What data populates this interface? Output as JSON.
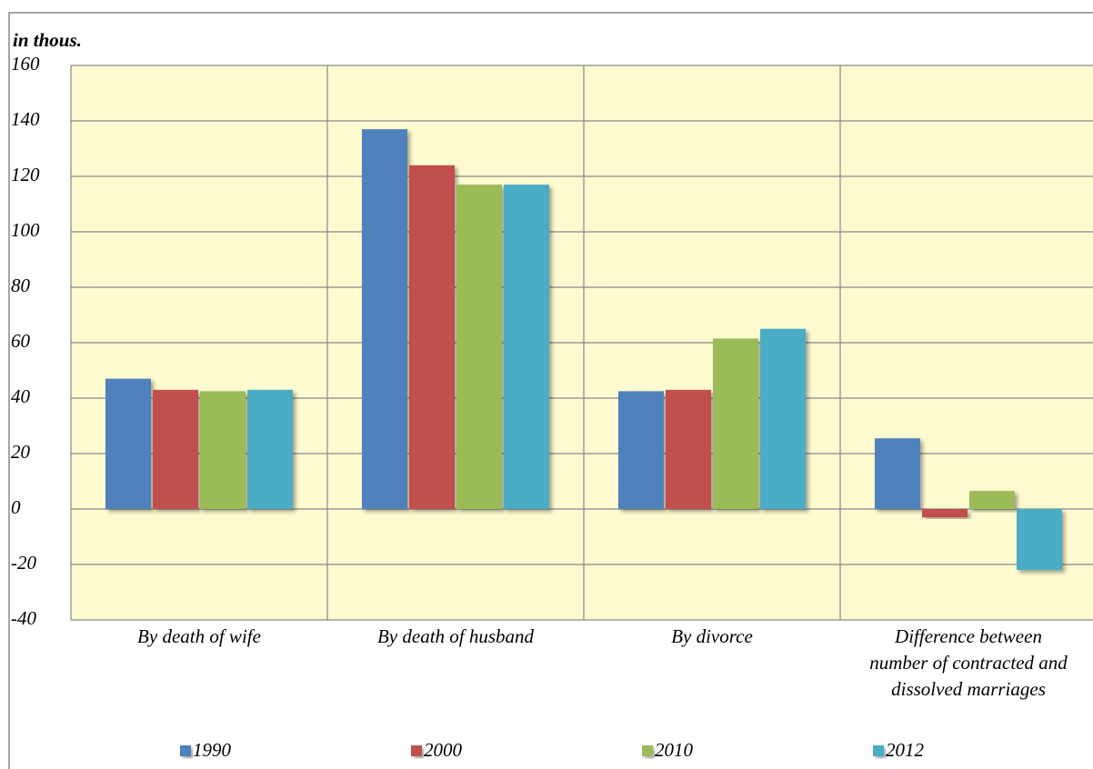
{
  "chart_data": {
    "type": "bar",
    "title": "in thous.",
    "categories": [
      "By death of wife",
      "By death of husband",
      "By divorce",
      "Difference between number of contracted and dissolved marriages"
    ],
    "series": [
      {
        "name": "1990",
        "color": "#4f81bd",
        "values": [
          47,
          137,
          42.5,
          25.5
        ]
      },
      {
        "name": "2000",
        "color": "#c0504d",
        "values": [
          43,
          124,
          43,
          -3
        ]
      },
      {
        "name": "2010",
        "color": "#9bbb59",
        "values": [
          42.5,
          117,
          61.5,
          6.5
        ]
      },
      {
        "name": "2012",
        "color": "#4bacc6",
        "values": [
          43,
          117,
          65,
          -22
        ]
      }
    ],
    "ylim": [
      -40,
      160
    ],
    "yticks": [
      -40,
      -20,
      0,
      20,
      40,
      60,
      80,
      100,
      120,
      140,
      160
    ],
    "grid": true,
    "legend": "bottom"
  }
}
